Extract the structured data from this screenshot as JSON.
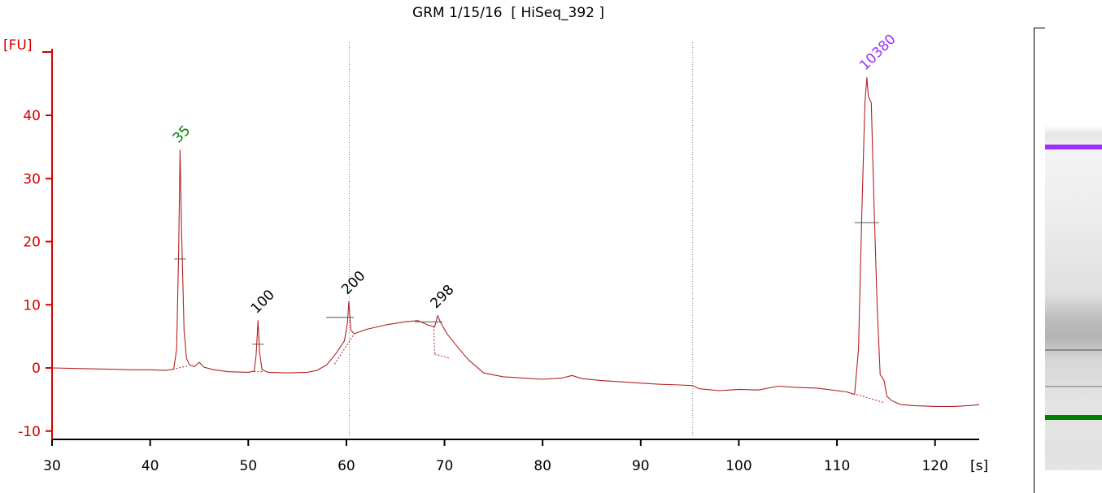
{
  "title": "GRM 1/15/16  [ HiSeq_392 ]",
  "chart_data": {
    "type": "line",
    "title": "GRM 1/15/16  [ HiSeq_392 ]",
    "xlabel": "[s]",
    "ylabel": "[FU]",
    "xlim": [
      30,
      124.5
    ],
    "ylim": [
      -11,
      50
    ],
    "x_ticks": [
      "30",
      "40",
      "50",
      "60",
      "70",
      "80",
      "90",
      "100",
      "110",
      "120"
    ],
    "y_ticks": [
      "-10",
      "0",
      "10",
      "20",
      "30",
      "40"
    ],
    "grid": false,
    "series": [
      {
        "color": "#b22222",
        "points": [
          [
            30,
            0
          ],
          [
            33,
            -0.1
          ],
          [
            36,
            -0.2
          ],
          [
            38,
            -0.3
          ],
          [
            40,
            -0.3
          ],
          [
            41.5,
            -0.4
          ],
          [
            42.4,
            -0.2
          ],
          [
            42.7,
            3
          ],
          [
            42.9,
            18
          ],
          [
            43.05,
            34.5
          ],
          [
            43.2,
            22
          ],
          [
            43.45,
            6
          ],
          [
            43.7,
            1.5
          ],
          [
            44,
            0.5
          ],
          [
            44.5,
            0.2
          ],
          [
            45,
            0.9
          ],
          [
            45.5,
            0.1
          ],
          [
            46.5,
            -0.3
          ],
          [
            48,
            -0.6
          ],
          [
            50,
            -0.7
          ],
          [
            50.6,
            -0.5
          ],
          [
            50.8,
            2
          ],
          [
            51,
            7.5
          ],
          [
            51.15,
            2.5
          ],
          [
            51.4,
            -0.3
          ],
          [
            52,
            -0.7
          ],
          [
            54,
            -0.8
          ],
          [
            56,
            -0.7
          ],
          [
            57,
            -0.4
          ],
          [
            58,
            0.5
          ],
          [
            59,
            2.4
          ],
          [
            59.8,
            4.3
          ],
          [
            60.1,
            7
          ],
          [
            60.25,
            10.5
          ],
          [
            60.45,
            6
          ],
          [
            60.8,
            5.4
          ],
          [
            62,
            6.1
          ],
          [
            64,
            6.8
          ],
          [
            66,
            7.3
          ],
          [
            67.3,
            7.5
          ],
          [
            68.3,
            6.8
          ],
          [
            69,
            6.5
          ],
          [
            69.3,
            8.3
          ],
          [
            69.6,
            7.2
          ],
          [
            70.3,
            5.3
          ],
          [
            71.5,
            3
          ],
          [
            72.5,
            1.2
          ],
          [
            74,
            -0.8
          ],
          [
            76,
            -1.4
          ],
          [
            78,
            -1.6
          ],
          [
            80,
            -1.8
          ],
          [
            82,
            -1.6
          ],
          [
            83,
            -1.2
          ],
          [
            84,
            -1.7
          ],
          [
            86,
            -2
          ],
          [
            88,
            -2.2
          ],
          [
            90,
            -2.4
          ],
          [
            92,
            -2.6
          ],
          [
            94,
            -2.7
          ],
          [
            95.3,
            -2.8
          ],
          [
            96,
            -3.3
          ],
          [
            98,
            -3.6
          ],
          [
            100,
            -3.4
          ],
          [
            102,
            -3.5
          ],
          [
            104,
            -2.9
          ],
          [
            106,
            -3.1
          ],
          [
            108,
            -3.2
          ],
          [
            110,
            -3.6
          ],
          [
            111,
            -3.8
          ],
          [
            111.8,
            -4.2
          ],
          [
            112.2,
            3
          ],
          [
            112.55,
            25
          ],
          [
            112.85,
            42
          ],
          [
            113.05,
            46
          ],
          [
            113.2,
            43
          ],
          [
            113.5,
            42
          ],
          [
            113.8,
            25
          ],
          [
            114.1,
            10
          ],
          [
            114.4,
            -1
          ],
          [
            114.8,
            -2
          ],
          [
            115.1,
            -4.5
          ],
          [
            115.6,
            -5.2
          ],
          [
            116.5,
            -5.8
          ],
          [
            118,
            -6
          ],
          [
            120,
            -6.1
          ],
          [
            122,
            -6.1
          ],
          [
            124,
            -5.9
          ],
          [
            124.5,
            -5.8
          ]
        ]
      }
    ],
    "peaks": [
      {
        "label": "35",
        "x": 43.05,
        "y": 34.5,
        "color": "#008000"
      },
      {
        "label": "100",
        "x": 51.0,
        "y": 7.5,
        "color": "#000000"
      },
      {
        "label": "200",
        "x": 60.25,
        "y": 10.5,
        "color": "#000000"
      },
      {
        "label": "298",
        "x": 69.3,
        "y": 8.3,
        "color": "#000000"
      },
      {
        "label": "10380",
        "x": 113.05,
        "y": 46,
        "color": "#9b30ff"
      }
    ],
    "dotted_vlines": [
      60.3,
      95.3
    ],
    "gel_lane": {
      "upper_marker_color": "#9b30ff",
      "lower_marker_color": "#008000"
    }
  }
}
